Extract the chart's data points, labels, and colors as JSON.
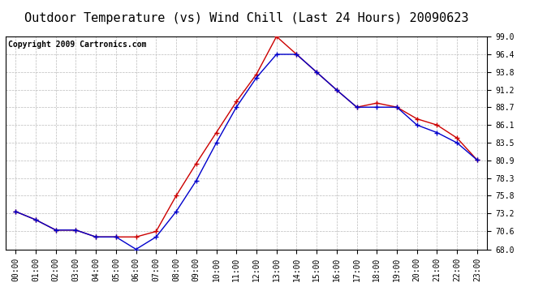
{
  "title": "Outdoor Temperature (vs) Wind Chill (Last 24 Hours) 20090623",
  "copyright": "Copyright 2009 Cartronics.com",
  "x_labels": [
    "00:00",
    "01:00",
    "02:00",
    "03:00",
    "04:00",
    "05:00",
    "06:00",
    "07:00",
    "08:00",
    "09:00",
    "10:00",
    "11:00",
    "12:00",
    "13:00",
    "14:00",
    "15:00",
    "16:00",
    "17:00",
    "18:00",
    "19:00",
    "20:00",
    "21:00",
    "22:00",
    "23:00"
  ],
  "outdoor_temp": [
    73.5,
    72.3,
    70.8,
    70.8,
    69.8,
    69.8,
    69.8,
    70.6,
    75.8,
    80.5,
    85.0,
    89.5,
    93.5,
    99.0,
    96.4,
    93.8,
    91.2,
    88.7,
    89.3,
    88.7,
    87.0,
    86.1,
    84.2,
    81.0
  ],
  "wind_chill": [
    73.5,
    72.3,
    70.8,
    70.8,
    69.8,
    69.8,
    68.0,
    69.8,
    73.5,
    78.0,
    83.5,
    88.7,
    93.0,
    96.4,
    96.4,
    93.8,
    91.2,
    88.7,
    88.7,
    88.7,
    86.1,
    85.0,
    83.5,
    81.0
  ],
  "temp_color": "#cc0000",
  "wind_color": "#0000cc",
  "marker": "+",
  "marker_size": 5,
  "linewidth": 1.0,
  "ylim": [
    68.0,
    99.0
  ],
  "yticks": [
    68.0,
    70.6,
    73.2,
    75.8,
    78.3,
    80.9,
    83.5,
    86.1,
    88.7,
    91.2,
    93.8,
    96.4,
    99.0
  ],
  "bg_color": "#ffffff",
  "grid_color": "#bbbbbb",
  "title_fontsize": 11,
  "tick_fontsize": 7,
  "copyright_fontsize": 7
}
